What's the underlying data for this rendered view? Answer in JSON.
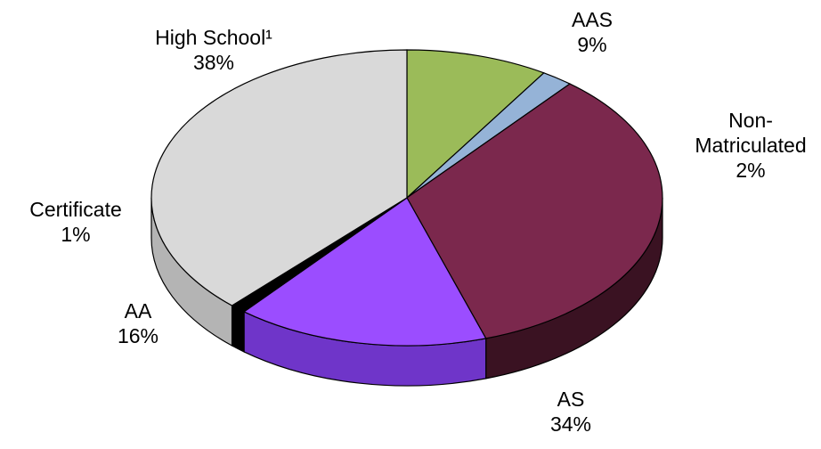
{
  "chart_data": {
    "type": "pie",
    "title": "",
    "categories": [
      "AAS",
      "Non-Matriculated",
      "AS",
      "AA",
      "Certificate",
      "High School¹"
    ],
    "values": [
      9,
      2,
      34,
      16,
      1,
      38
    ],
    "label_lines": [
      [
        "AAS",
        "9%"
      ],
      [
        "Non-",
        "Matriculated",
        "2%"
      ],
      [
        "AS",
        "34%"
      ],
      [
        "AA",
        "16%"
      ],
      [
        "Certificate",
        "1%"
      ],
      [
        "High School¹",
        "38%"
      ]
    ],
    "colors": [
      "#9bbb59",
      "#95b3d7",
      "#7b284d",
      "#9b4dff",
      "#000000",
      "#d9d9d9"
    ],
    "side_colors": [
      "#7a9a3d",
      "#7596bd",
      "#3a1222",
      "#6f35c9",
      "#000000",
      "#b4b4b4"
    ],
    "style": "3d-tilted",
    "legend": "none"
  }
}
